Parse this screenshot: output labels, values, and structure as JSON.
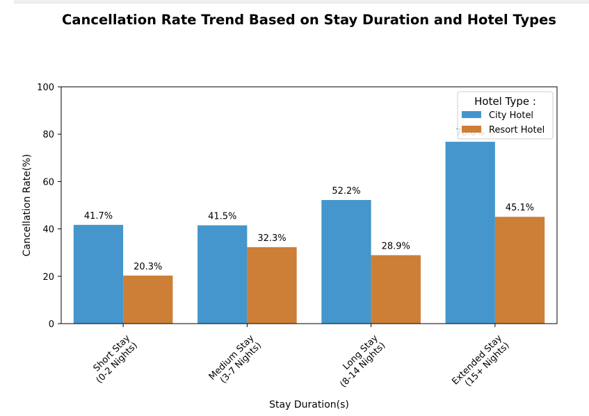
{
  "chart_data": {
    "type": "bar",
    "title": "Cancellation Rate Trend Based on Stay Duration and Hotel Types",
    "xlabel": "Stay Duration(s)",
    "ylabel": "Cancellation Rate(%)",
    "ylim": [
      0,
      100
    ],
    "yticks": [
      0,
      20,
      40,
      60,
      80,
      100
    ],
    "grid": false,
    "categories": [
      [
        "Short Stay",
        "(0-2 Nights)"
      ],
      [
        "Medium Stay",
        "(3-7 Nights)"
      ],
      [
        "Long Stay",
        "(8-14 Nights)"
      ],
      [
        "Extended Stay",
        "(15+ Nights)"
      ]
    ],
    "series": [
      {
        "name": "City Hotel",
        "color": "#4496cc",
        "values": [
          41.7,
          41.5,
          52.2,
          76.8
        ],
        "labels": [
          "41.7%",
          "41.5%",
          "52.2%",
          "76.8%"
        ]
      },
      {
        "name": "Resort Hotel",
        "color": "#cd7e37",
        "values": [
          20.3,
          32.3,
          28.9,
          45.1
        ],
        "labels": [
          "20.3%",
          "32.3%",
          "28.9%",
          "45.1%"
        ]
      }
    ],
    "legend": {
      "title": "Hotel Type :",
      "placement": "top-right"
    }
  }
}
